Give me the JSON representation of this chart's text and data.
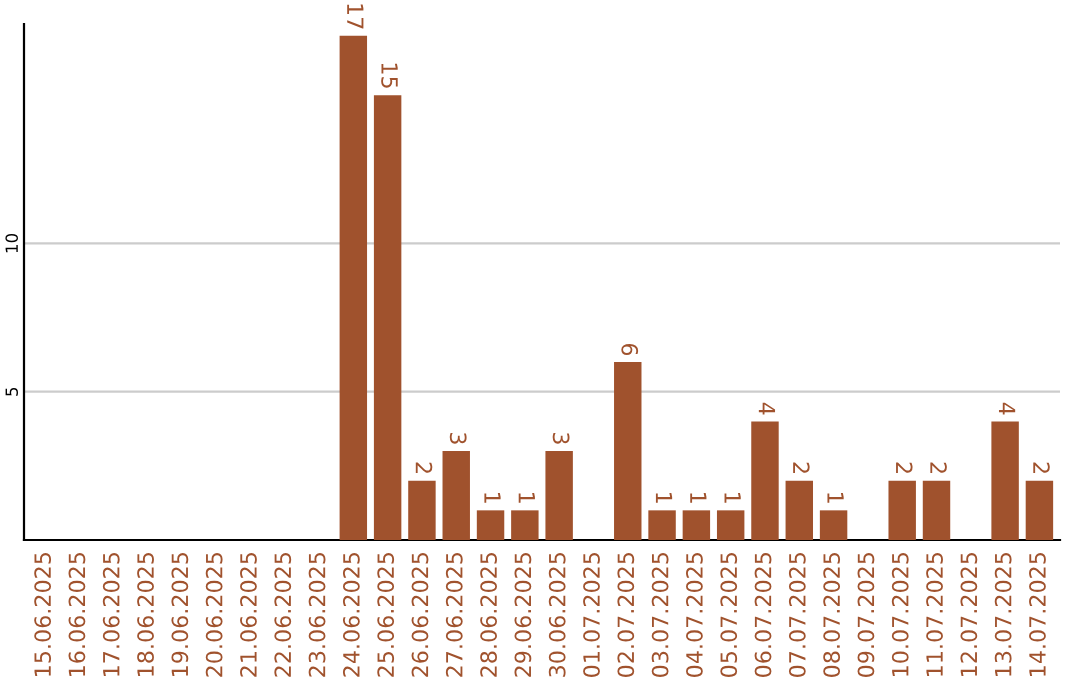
{
  "chart_data": {
    "type": "bar",
    "categories": [
      "15.06.2025",
      "16.06.2025",
      "17.06.2025",
      "18.06.2025",
      "19.06.2025",
      "20.06.2025",
      "21.06.2025",
      "22.06.2025",
      "23.06.2025",
      "24.06.2025",
      "25.06.2025",
      "26.06.2025",
      "27.06.2025",
      "28.06.2025",
      "29.06.2025",
      "30.06.2025",
      "01.07.2025",
      "02.07.2025",
      "03.07.2025",
      "04.07.2025",
      "05.07.2025",
      "06.07.2025",
      "07.07.2025",
      "08.07.2025",
      "09.07.2025",
      "10.07.2025",
      "11.07.2025",
      "12.07.2025",
      "13.07.2025",
      "14.07.2025"
    ],
    "values": [
      0,
      0,
      0,
      0,
      0,
      0,
      0,
      0,
      0,
      17,
      15,
      2,
      3,
      1,
      1,
      3,
      0,
      6,
      1,
      1,
      1,
      4,
      2,
      1,
      0,
      2,
      2,
      0,
      4,
      2
    ],
    "value_labels": [
      null,
      null,
      null,
      null,
      null,
      null,
      null,
      null,
      null,
      "17",
      "15",
      "2",
      "3",
      "1",
      "1",
      "3",
      null,
      "6",
      "1",
      "1",
      "1",
      "4",
      "2",
      "1",
      null,
      "2",
      "2",
      null,
      "4",
      "2"
    ],
    "color": "#a0522d",
    "ylim": [
      0,
      17.4
    ],
    "yticks": [
      5,
      10
    ],
    "grid": "y"
  }
}
